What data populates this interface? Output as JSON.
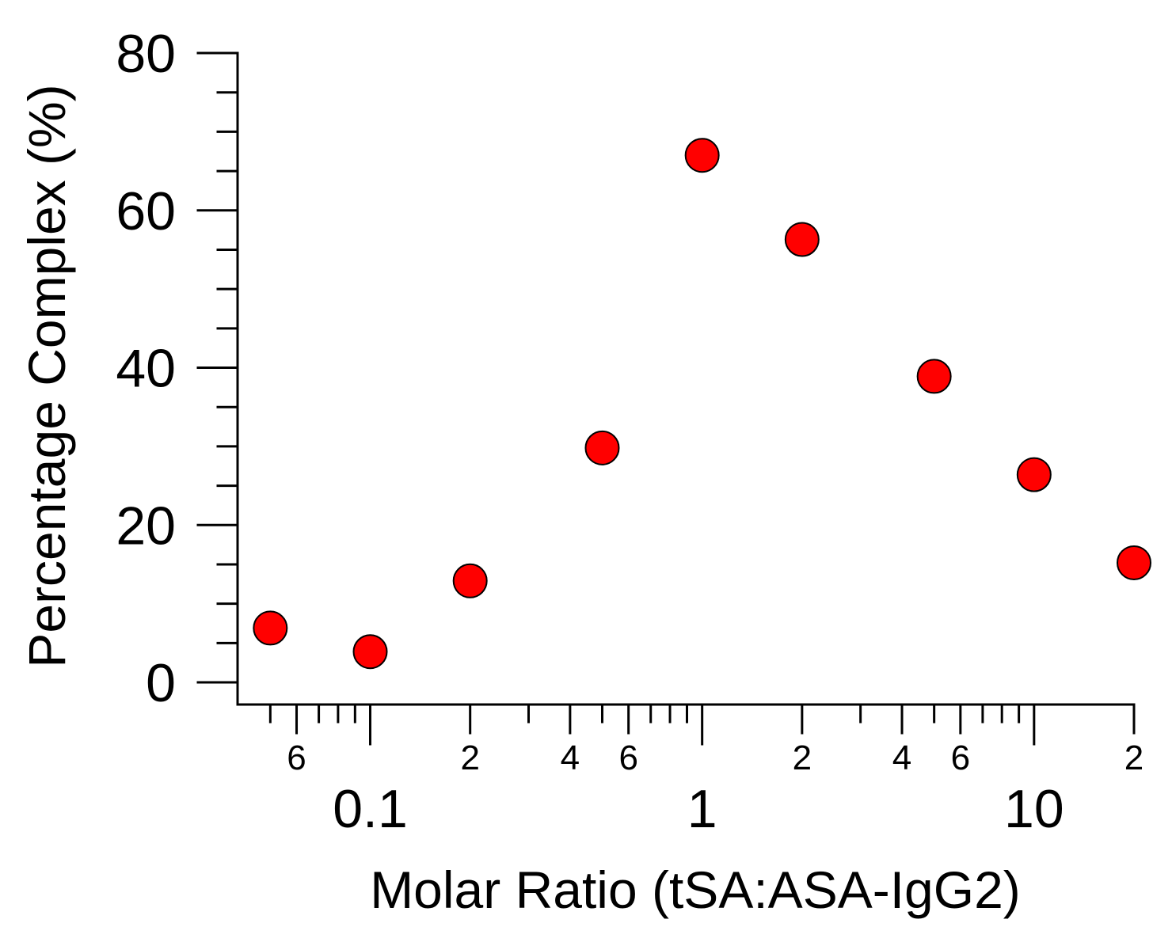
{
  "chart_data": {
    "type": "scatter",
    "xlabel": "Molar Ratio (tSA:ASA-IgG2)",
    "ylabel": "Percentage Complex (%)",
    "x_scale": "log",
    "xlim": [
      0.0475,
      20
    ],
    "ylim": [
      0,
      80
    ],
    "grid": false,
    "legend": "none",
    "marker_color": "#ff0000",
    "yticks": [
      {
        "value": 0,
        "label": "0"
      },
      {
        "value": 20,
        "label": "20"
      },
      {
        "value": 40,
        "label": "40"
      },
      {
        "value": 60,
        "label": "60"
      },
      {
        "value": 80,
        "label": "80"
      }
    ],
    "xticks_major": [
      {
        "value": 0.1,
        "label": "0.1"
      },
      {
        "value": 1,
        "label": "1"
      },
      {
        "value": 10,
        "label": "10"
      }
    ],
    "xticks_minor_labeled": [
      {
        "value": 0.06,
        "label": "6"
      },
      {
        "value": 0.2,
        "label": "2"
      },
      {
        "value": 0.4,
        "label": "4"
      },
      {
        "value": 0.6,
        "label": "6"
      },
      {
        "value": 2,
        "label": "2"
      },
      {
        "value": 4,
        "label": "4"
      },
      {
        "value": 6,
        "label": "6"
      },
      {
        "value": 20,
        "label": "2"
      }
    ],
    "points": [
      {
        "x": 0.05,
        "y": 6.9
      },
      {
        "x": 0.1,
        "y": 3.9
      },
      {
        "x": 0.2,
        "y": 12.9
      },
      {
        "x": 0.5,
        "y": 29.8
      },
      {
        "x": 1,
        "y": 67
      },
      {
        "x": 2,
        "y": 56.3
      },
      {
        "x": 5,
        "y": 38.9
      },
      {
        "x": 10,
        "y": 26.4
      },
      {
        "x": 20,
        "y": 15.2
      }
    ]
  }
}
